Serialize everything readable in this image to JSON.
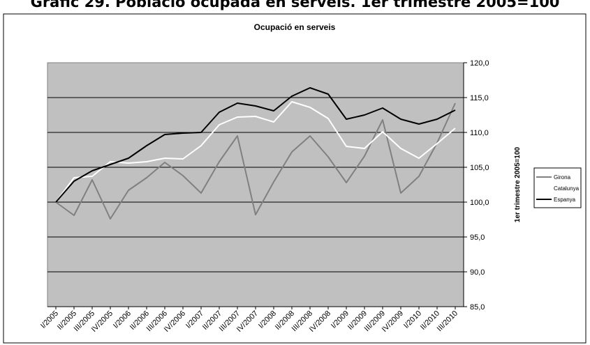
{
  "page_heading": "Gràfic 29. Població ocupada en serveis. 1er trimestre 2005=100",
  "chart_data": {
    "type": "line",
    "title": "Ocupació en serveis",
    "xlabel": "",
    "ylabel": "1er trimestre 2005=100",
    "ylim": [
      85,
      120
    ],
    "y_ticks": [
      "85,0",
      "90,0",
      "95,0",
      "100,0",
      "105,0",
      "110,0",
      "115,0",
      "120,0"
    ],
    "y_tick_values": [
      85,
      90,
      95,
      100,
      105,
      110,
      115,
      120
    ],
    "grid": true,
    "legend_position": "right",
    "plot_background": "#c0c0c0",
    "categories": [
      "I/2005",
      "II/2005",
      "III/2005",
      "IV/2005",
      "I/2006",
      "II/2006",
      "III/2006",
      "IV/2006",
      "I/2007",
      "II/2007",
      "III/2007",
      "IV/2007",
      "I/2008",
      "II/2008",
      "III/2008",
      "IV/2008",
      "I/2009",
      "II/2009",
      "III/2009",
      "IV/2009",
      "I/2010",
      "II/2010",
      "III/2010"
    ],
    "series": [
      {
        "name": "Girona",
        "color": "#808080",
        "values": [
          100.0,
          98.1,
          103.2,
          97.6,
          101.7,
          103.5,
          105.7,
          103.8,
          101.3,
          105.8,
          109.5,
          98.2,
          102.9,
          107.2,
          109.5,
          106.5,
          102.8,
          106.6,
          111.8,
          101.3,
          103.7,
          108.5,
          114.2
        ]
      },
      {
        "name": "Catalunya",
        "color": "#ffffff",
        "values": [
          100.0,
          103.5,
          103.7,
          105.8,
          105.6,
          105.8,
          106.3,
          106.2,
          108.1,
          111.1,
          112.2,
          112.3,
          111.5,
          114.4,
          113.6,
          112.0,
          108.0,
          107.7,
          110.1,
          107.7,
          106.3,
          108.4,
          110.6
        ]
      },
      {
        "name": "Espanya",
        "color": "#000000",
        "values": [
          100.0,
          103.0,
          104.5,
          105.4,
          106.3,
          108.1,
          109.7,
          109.9,
          110.0,
          112.9,
          114.2,
          113.8,
          113.1,
          115.2,
          116.4,
          115.5,
          111.9,
          112.5,
          113.5,
          111.9,
          111.2,
          111.9,
          113.2
        ]
      }
    ]
  }
}
